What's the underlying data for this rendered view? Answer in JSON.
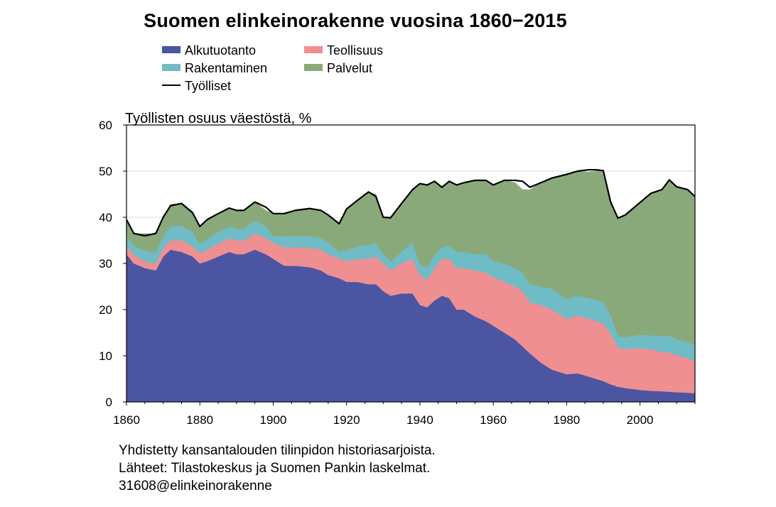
{
  "chart_data": {
    "type": "area",
    "title": "Suomen elinkeinorakenne vuosina 1860−2015",
    "ylabel": "Työllisten osuus väestöstä, %",
    "xlabel": "",
    "xlim": [
      1860,
      2015
    ],
    "ylim": [
      0,
      60
    ],
    "xticks": [
      1860,
      1880,
      1900,
      1920,
      1940,
      1960,
      1980,
      2000
    ],
    "yticks": [
      0,
      10,
      20,
      30,
      40,
      50,
      60
    ],
    "grid": "horizontal",
    "legend_position": "top-left, above plot",
    "x": [
      1860,
      1862,
      1865,
      1868,
      1870,
      1872,
      1875,
      1878,
      1880,
      1882,
      1885,
      1888,
      1890,
      1892,
      1895,
      1898,
      1900,
      1903,
      1906,
      1910,
      1913,
      1915,
      1918,
      1920,
      1923,
      1926,
      1928,
      1930,
      1932,
      1935,
      1938,
      1940,
      1942,
      1944,
      1946,
      1948,
      1950,
      1952,
      1955,
      1958,
      1960,
      1963,
      1966,
      1968,
      1970,
      1973,
      1976,
      1980,
      1983,
      1986,
      1988,
      1990,
      1992,
      1994,
      1996,
      2000,
      2003,
      2006,
      2008,
      2010,
      2013,
      2015
    ],
    "series": [
      {
        "name": "Alkutuotanto",
        "color": "#4b55a2",
        "values": [
          32,
          30,
          29,
          28.5,
          31.5,
          33,
          32.5,
          31.5,
          30,
          30.5,
          31.5,
          32.5,
          32,
          32,
          33,
          32,
          31,
          29.5,
          29.5,
          29.2,
          28.5,
          27.5,
          26.8,
          26,
          26,
          25.5,
          25.5,
          24,
          23,
          23.5,
          23.5,
          21,
          20.5,
          22,
          23,
          22.5,
          20,
          20,
          18.5,
          17.5,
          16.5,
          15,
          13.5,
          12,
          10.5,
          8.5,
          7,
          6,
          6.2,
          5.5,
          5,
          4.5,
          3.8,
          3.3,
          3,
          2.6,
          2.4,
          2.3,
          2.2,
          2.1,
          2,
          1.9
        ]
      },
      {
        "name": "Teollisuus",
        "color": "#ef8f92",
        "values": [
          2,
          1.8,
          1.5,
          1.5,
          1.8,
          2,
          2.5,
          2.3,
          2.2,
          2.5,
          2.8,
          3,
          3,
          3,
          3.5,
          3.5,
          3.5,
          4,
          4,
          4.2,
          4.5,
          4.5,
          4.3,
          4.5,
          5,
          5.5,
          6,
          6,
          5.5,
          6.5,
          7.5,
          6.5,
          6,
          7,
          8,
          8.5,
          9,
          9,
          10,
          10.5,
          10.5,
          11,
          11.5,
          12,
          11,
          12.5,
          13,
          12,
          12.5,
          12.5,
          12.5,
          12.5,
          11,
          8.5,
          8.5,
          9,
          9,
          8.5,
          8.5,
          8,
          7.5,
          6.8
        ]
      },
      {
        "name": "Rakentaminen",
        "color": "#70bcc6",
        "values": [
          2,
          2,
          2.3,
          2.3,
          2.5,
          3,
          3.2,
          3,
          2,
          2.3,
          2.5,
          2.5,
          2.5,
          2.5,
          2.8,
          2.5,
          1.5,
          2.3,
          2.5,
          2.5,
          2.5,
          2.5,
          1.5,
          2.3,
          2.7,
          3,
          3,
          2,
          1.9,
          2.5,
          3.5,
          2.3,
          2.5,
          2.8,
          2.5,
          2.8,
          3.5,
          3.5,
          3.5,
          4,
          3.5,
          4,
          4,
          4,
          4,
          4,
          4.5,
          4.3,
          4.3,
          4.5,
          4.6,
          4.7,
          4,
          2.5,
          2.5,
          3,
          3,
          3.5,
          3.6,
          3.5,
          3.5,
          3.5
        ]
      },
      {
        "name": "Palvelut",
        "color": "#8aa97a",
        "values": [
          3,
          2.5,
          3.7,
          4,
          4.2,
          4.8,
          4.8,
          4.5,
          3.8,
          4.2,
          4,
          4,
          4,
          4,
          4,
          3.5,
          4.8,
          5,
          5.5,
          6,
          6,
          6,
          6,
          9,
          10,
          11.5,
          10.5,
          8,
          9.5,
          10.5,
          11.5,
          17.5,
          18,
          16,
          13,
          14,
          14.5,
          15,
          16,
          16,
          16.5,
          18,
          18.5,
          18,
          20.5,
          22.5,
          24,
          27,
          27,
          27.3,
          28,
          28.3,
          24.5,
          25.5,
          26.5,
          28.6,
          30.8,
          31.7,
          33.8,
          33,
          33,
          32.3
        ]
      },
      {
        "name": "Työlliset",
        "color": "#000000",
        "kind": "line",
        "values": [
          39.5,
          36.5,
          36,
          36.5,
          40,
          42.5,
          43,
          41,
          38,
          39.5,
          40.8,
          42,
          41.5,
          41.5,
          43.3,
          42.2,
          40.8,
          40.8,
          41.5,
          41.9,
          41.5,
          40.5,
          38.6,
          41.8,
          43.7,
          45.5,
          44.5,
          40,
          39.9,
          43,
          46,
          47.3,
          47,
          47.8,
          46.5,
          47.8,
          47,
          47.5,
          48,
          48,
          47,
          48,
          48,
          47.8,
          46.5,
          47.5,
          48.5,
          49.3,
          50,
          50.3,
          50.3,
          50.1,
          43.3,
          39.8,
          40.5,
          43.2,
          45.2,
          46,
          48.1,
          46.6,
          46,
          44.5
        ]
      }
    ]
  },
  "legend": [
    {
      "label": "Alkutuotanto",
      "color": "#4b55a2",
      "kind": "box"
    },
    {
      "label": "Teollisuus",
      "color": "#ef8f92",
      "kind": "box"
    },
    {
      "label": "Rakentaminen",
      "color": "#70bcc6",
      "kind": "box"
    },
    {
      "label": "Palvelut",
      "color": "#8aa97a",
      "kind": "box"
    },
    {
      "label": "Työlliset",
      "color": "#000000",
      "kind": "line"
    }
  ],
  "footer": {
    "line1": "Yhdistetty kansantalouden tilinpidon historiasarjoista.",
    "line2": "Lähteet: Tilastokeskus ja Suomen Pankin laskelmat.",
    "line3": "31608@elinkeinorakenne"
  }
}
